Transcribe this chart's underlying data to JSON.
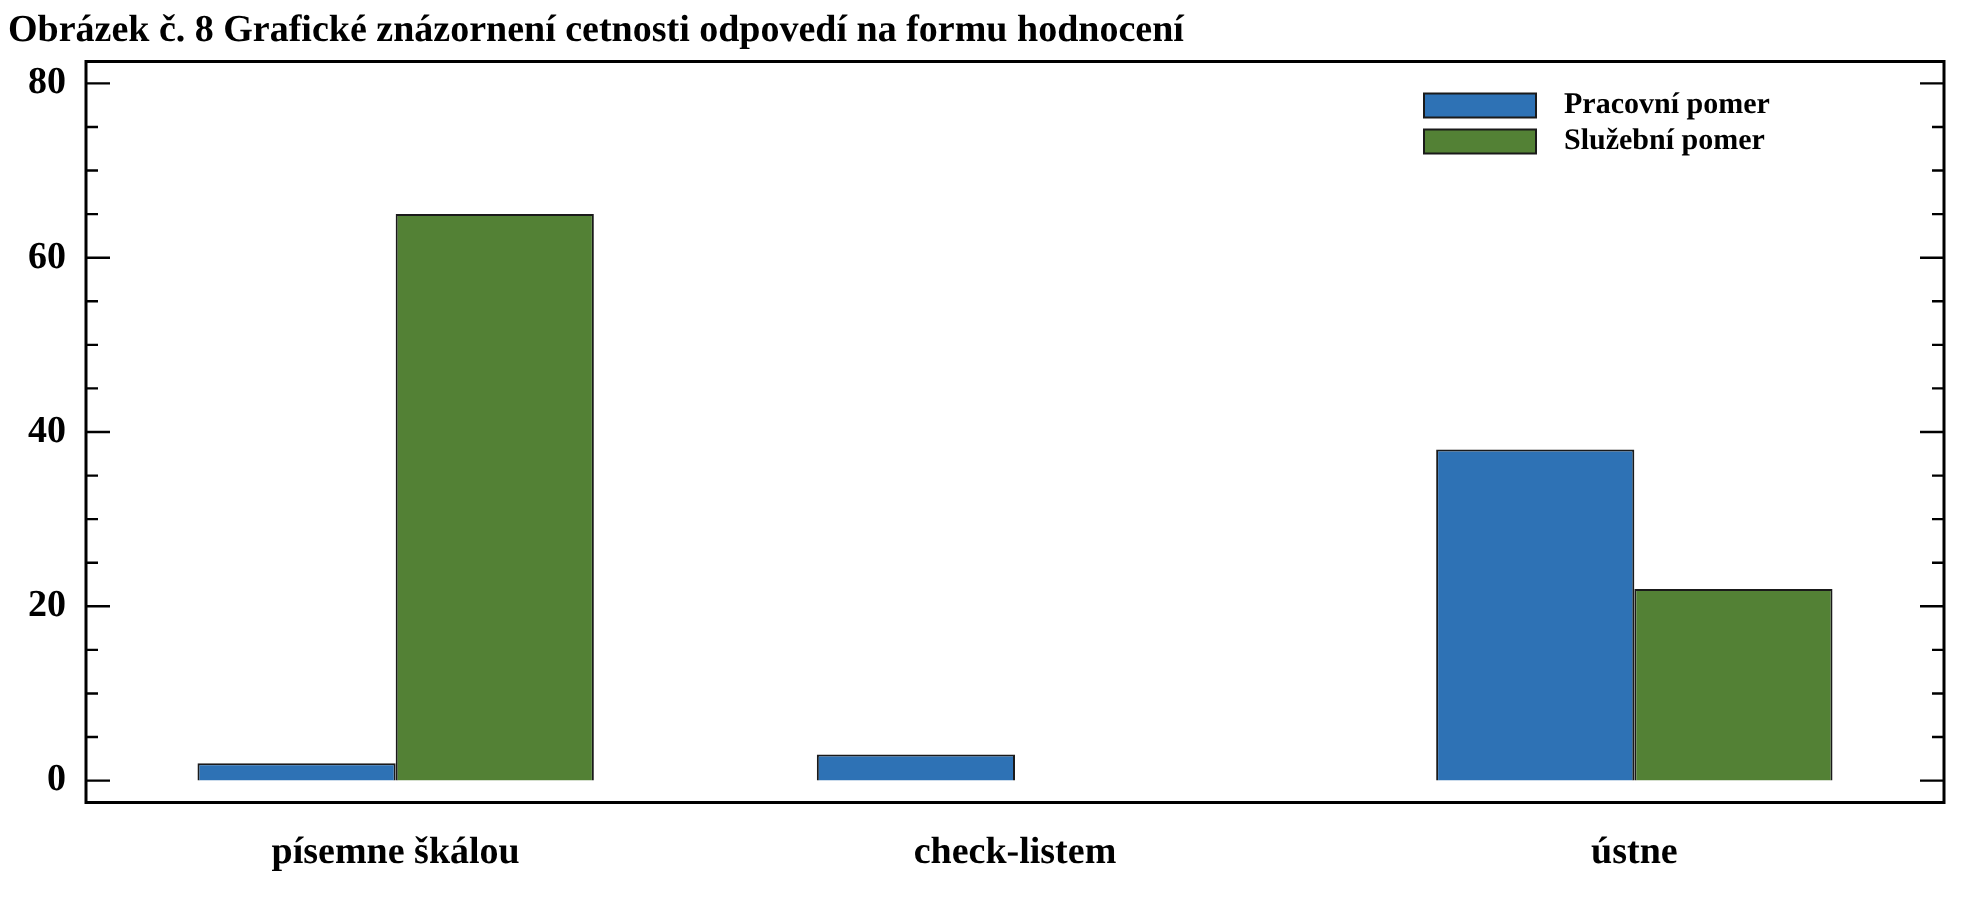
{
  "chart_data": {
    "type": "bar",
    "title": "Obrázek č. 8 Grafické znázornení cetnosti odpovedí na formu hodnocení",
    "categories": [
      "písemne škálou",
      "check-listem",
      "ústne"
    ],
    "series": [
      {
        "name": "Pracovní pomer",
        "color": "#2e72b5",
        "values": [
          2,
          3,
          38
        ]
      },
      {
        "name": "Služební pomer",
        "color": "#538135",
        "values": [
          65,
          0,
          22
        ]
      }
    ],
    "ylim": [
      -2.5,
      82.5
    ],
    "yticks": [
      0,
      {
        "value": 5,
        "label": null
      },
      {
        "value": 10,
        "label": null
      },
      {
        "value": 15,
        "label": null
      },
      20,
      {
        "value": 25,
        "label": null
      },
      {
        "value": 30,
        "label": null
      },
      {
        "value": 35,
        "label": null
      },
      40,
      {
        "value": 45,
        "label": null
      },
      {
        "value": 50,
        "label": null
      },
      {
        "value": 55,
        "label": null
      },
      60,
      {
        "value": 65,
        "label": null
      },
      {
        "value": 70,
        "label": null
      },
      {
        "value": 75,
        "label": null
      },
      80
    ],
    "grid": false,
    "legend": "top right"
  }
}
